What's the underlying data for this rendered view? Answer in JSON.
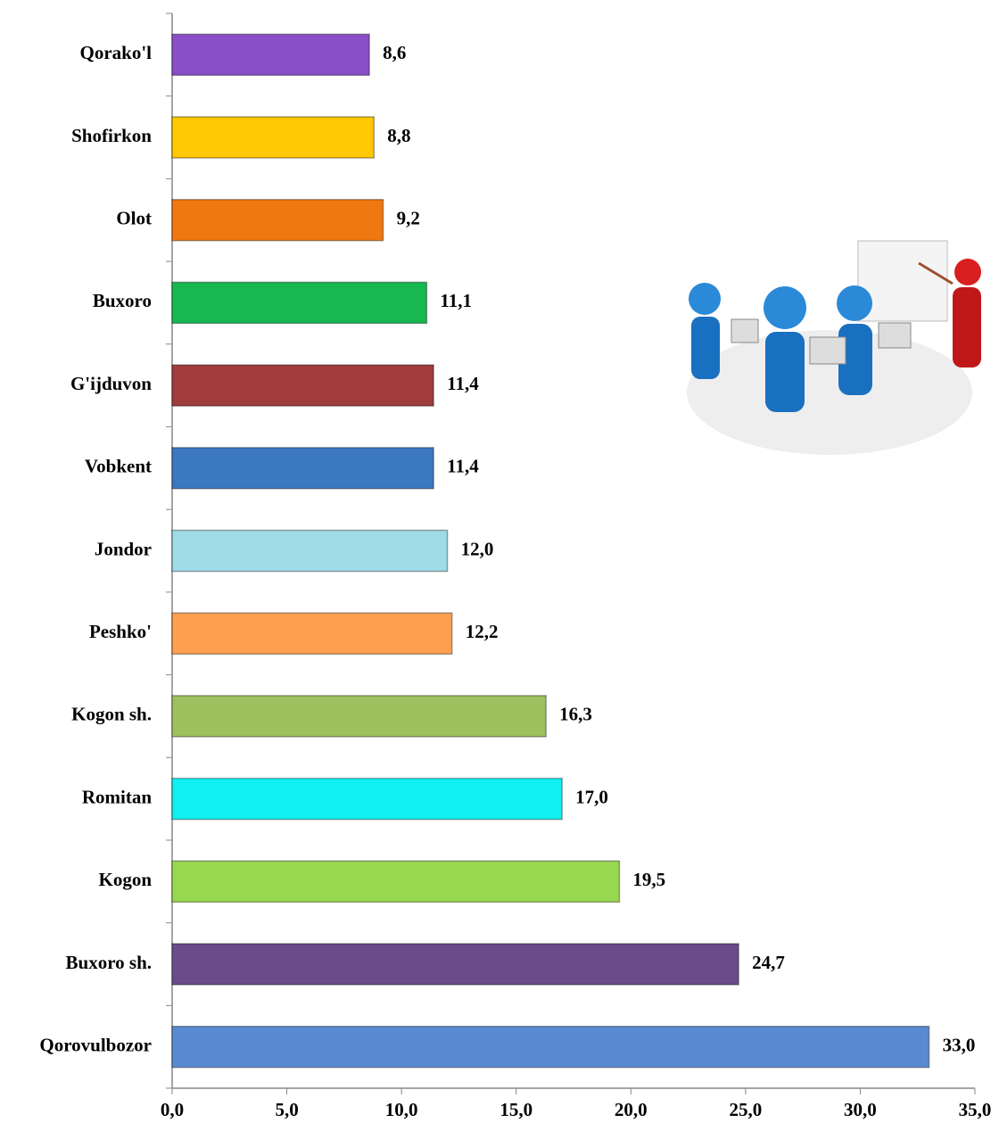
{
  "chart_data": {
    "type": "hbar",
    "categories": [
      "Qorako'l",
      "Shofirkon",
      "Olot",
      "Buxoro",
      "G'ijduvon",
      "Vobkent",
      "Jondor",
      "Peshko'",
      "Kogon sh.",
      "Romitan",
      "Kogon",
      "Buxoro sh.",
      "Qorovulbozor"
    ],
    "values": [
      8.6,
      8.8,
      9.2,
      11.1,
      11.4,
      11.4,
      12.0,
      12.2,
      16.3,
      17.0,
      19.5,
      24.7,
      33.0
    ],
    "value_labels": [
      "8,6",
      "8,8",
      "9,2",
      "11,1",
      "11,4",
      "11,4",
      "12,0",
      "12,2",
      "16,3",
      "17,0",
      "19,5",
      "24,7",
      "33,0"
    ],
    "colors": [
      "#8a4fc8",
      "#ffc800",
      "#f07810",
      "#18b850",
      "#a03c3c",
      "#3c78c0",
      "#a0dce8",
      "#ffa050",
      "#a0c060",
      "#10f0f0",
      "#98d850",
      "#6a4c8c",
      "#5a8ad0"
    ],
    "xlim": [
      0,
      35
    ],
    "xticks": [
      {
        "value": 0,
        "label": "0,0"
      },
      {
        "value": 5,
        "label": "5,0"
      },
      {
        "value": 10,
        "label": "10,0"
      },
      {
        "value": 15,
        "label": "15,0"
      },
      {
        "value": 20,
        "label": "20,0"
      },
      {
        "value": 25,
        "label": "25,0"
      },
      {
        "value": 30,
        "label": "30,0"
      },
      {
        "value": 35,
        "label": "35,0"
      }
    ]
  }
}
